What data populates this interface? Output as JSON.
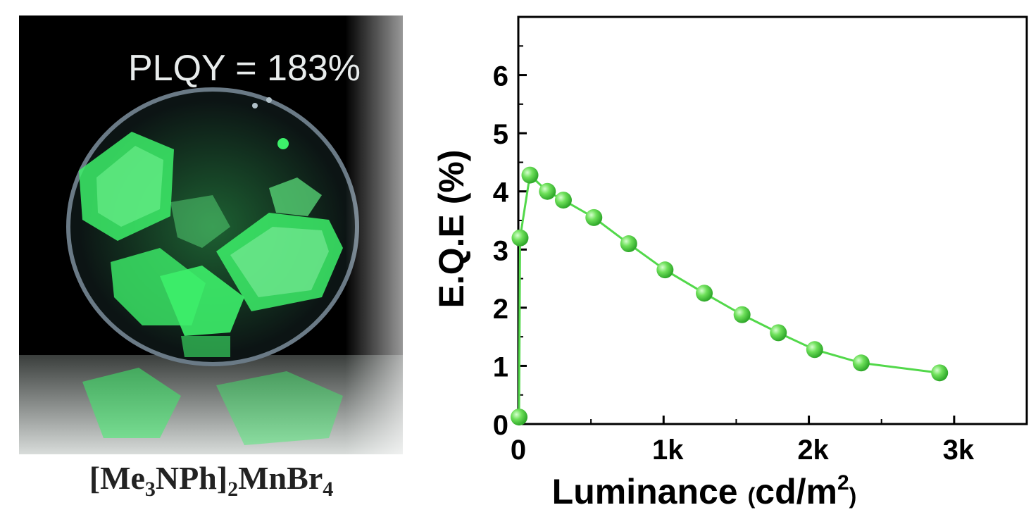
{
  "photo": {
    "overlay_text": "PLQY = 183%",
    "caption_parts": [
      "[Me",
      "3",
      "NPh]",
      "2",
      "MnBr",
      "4"
    ],
    "colors": {
      "background": "#000000",
      "crystal": "#3df06a",
      "dish_rim": "#6a7a86"
    }
  },
  "chart_data": {
    "type": "scatter",
    "xlabel": "Luminance",
    "xlabel_unit_parts": [
      "(",
      "cd/m",
      "2",
      ")"
    ],
    "ylabel": "E.Q.E (%)",
    "xlim": [
      0,
      3500
    ],
    "ylim": [
      0,
      7
    ],
    "xticks": [
      0,
      1000,
      2000,
      3000
    ],
    "xtick_labels": [
      "0",
      "1k",
      "2k",
      "3k"
    ],
    "yticks": [
      0,
      1,
      2,
      3,
      4,
      5,
      6
    ],
    "ytick_labels": [
      "0",
      "1",
      "2",
      "3",
      "4",
      "5",
      "6"
    ],
    "grid": false,
    "color": "#52d84a",
    "series": [
      {
        "x": [
          5,
          12,
          80,
          200,
          310,
          520,
          760,
          1010,
          1280,
          1540,
          1790,
          2040,
          2360,
          2900
        ],
        "y": [
          0.12,
          3.2,
          4.28,
          4.0,
          3.85,
          3.55,
          3.1,
          2.65,
          2.25,
          1.88,
          1.57,
          1.28,
          1.05,
          0.88
        ]
      }
    ]
  }
}
